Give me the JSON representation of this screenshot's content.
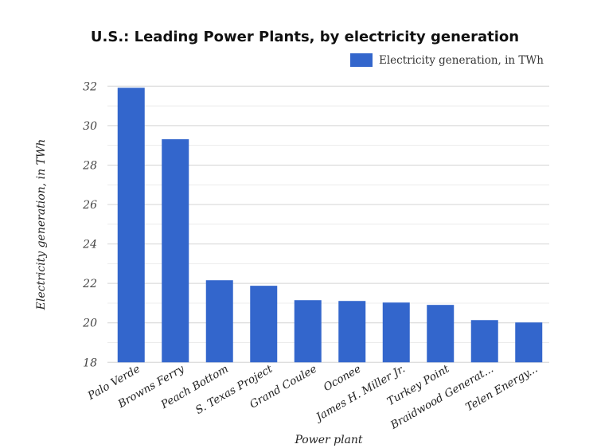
{
  "chart_data": {
    "type": "bar",
    "title": "U.S.: Leading Power Plants, by electricity generation",
    "xlabel": "Power plant",
    "ylabel": "Electricity generation, in TWh",
    "legend": {
      "position": "top-right",
      "entries": [
        "Electricity generation, in TWh"
      ]
    },
    "categories": [
      "Palo Verde",
      "Browns Ferry",
      "Peach Bottom",
      "S. Texas Project",
      "Grand Coulee",
      "Oconee",
      "James H. Miller Jr.",
      "Turkey Point",
      "Braidwood Generat...",
      "Telen Energy..."
    ],
    "series": [
      {
        "name": "Electricity generation, in TWh",
        "color": "#3366cc",
        "values": [
          31.92,
          29.31,
          22.16,
          21.88,
          21.15,
          21.11,
          21.03,
          20.91,
          20.14,
          20.02
        ]
      }
    ],
    "ylim": [
      18,
      32
    ],
    "yticks": [
      "18",
      "20",
      "22",
      "24",
      "26",
      "28",
      "30",
      "32"
    ],
    "grid": true
  }
}
